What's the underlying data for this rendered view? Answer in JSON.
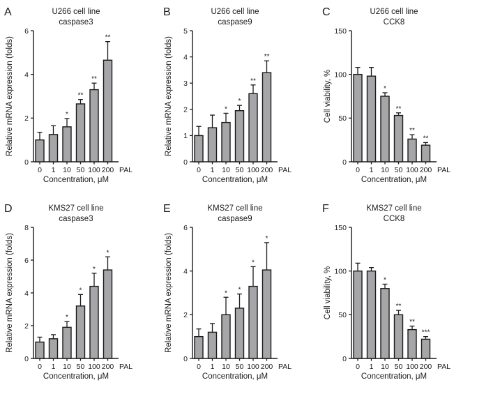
{
  "figure": {
    "bar_color": "#a6a6a9",
    "stroke_color": "#1a1a1a",
    "background": "#ffffff"
  },
  "chart_data": [
    {
      "type": "bar",
      "panel": "A",
      "title": "U266 cell line",
      "subtitle": "caspase3",
      "ylabel": "Relative mRNA expression (folds)",
      "xlabel": "Concentration, μM",
      "x_suffix": "PAL",
      "ylim": [
        0,
        6
      ],
      "yticks": [
        0,
        2,
        4,
        6
      ],
      "categories": [
        "0",
        "1",
        "10",
        "50",
        "100",
        "200"
      ],
      "values": [
        1.0,
        1.25,
        1.6,
        2.65,
        3.3,
        4.65
      ],
      "errors": [
        0.35,
        0.4,
        0.38,
        0.2,
        0.3,
        0.85
      ],
      "sig": [
        "",
        "",
        "*",
        "**",
        "**",
        "**"
      ],
      "legend": "none",
      "grid": "off"
    },
    {
      "type": "bar",
      "panel": "B",
      "title": "U266 cell line",
      "subtitle": "caspase9",
      "ylabel": "Relative mRNA expression (folds)",
      "xlabel": "Concentration, μM",
      "x_suffix": "PAL",
      "ylim": [
        0,
        5
      ],
      "yticks": [
        0,
        1,
        2,
        3,
        4,
        5
      ],
      "categories": [
        "0",
        "1",
        "10",
        "50",
        "100",
        "200"
      ],
      "values": [
        1.0,
        1.3,
        1.5,
        1.95,
        2.6,
        3.4
      ],
      "errors": [
        0.35,
        0.48,
        0.35,
        0.2,
        0.33,
        0.45
      ],
      "sig": [
        "",
        "",
        "*",
        "*",
        "**",
        "**"
      ],
      "legend": "none",
      "grid": "off"
    },
    {
      "type": "bar",
      "panel": "C",
      "title": "U266 cell line",
      "subtitle": "CCK8",
      "ylabel": "Cell viability, %",
      "xlabel": "Concentration, μM",
      "x_suffix": "PAL",
      "ylim": [
        0,
        150
      ],
      "yticks": [
        0,
        50,
        100,
        150
      ],
      "categories": [
        "0",
        "1",
        "10",
        "50",
        "100",
        "200"
      ],
      "values": [
        100,
        98,
        75,
        53,
        26,
        19
      ],
      "errors": [
        8,
        10,
        4,
        3,
        5,
        3
      ],
      "sig": [
        "",
        "",
        "*",
        "**",
        "**",
        "**"
      ],
      "legend": "none",
      "grid": "off"
    },
    {
      "type": "bar",
      "panel": "D",
      "title": "KMS27 cell line",
      "subtitle": "caspase3",
      "ylabel": "Relative mRNA expression (folds)",
      "xlabel": "Concentration, μM",
      "x_suffix": "PAL",
      "ylim": [
        0,
        8
      ],
      "yticks": [
        0,
        2,
        4,
        6,
        8
      ],
      "categories": [
        "0",
        "1",
        "10",
        "50",
        "100",
        "200"
      ],
      "values": [
        1.0,
        1.2,
        1.9,
        3.2,
        4.4,
        5.4
      ],
      "errors": [
        0.3,
        0.25,
        0.35,
        0.7,
        0.8,
        0.8
      ],
      "sig": [
        "",
        "",
        "*",
        "*",
        "*",
        "*"
      ],
      "legend": "none",
      "grid": "off"
    },
    {
      "type": "bar",
      "panel": "E",
      "title": "KMS27 cell line",
      "subtitle": "caspase9",
      "ylabel": "Relative mRNA expression (folds)",
      "xlabel": "Concentration, μM",
      "x_suffix": "PAL",
      "ylim": [
        0,
        6
      ],
      "yticks": [
        0,
        2,
        4,
        6
      ],
      "categories": [
        "0",
        "1",
        "10",
        "50",
        "100",
        "200"
      ],
      "values": [
        1.0,
        1.2,
        2.0,
        2.3,
        3.3,
        4.05
      ],
      "errors": [
        0.35,
        0.4,
        0.8,
        0.65,
        0.9,
        1.25
      ],
      "sig": [
        "",
        "",
        "*",
        "*",
        "*",
        "*"
      ],
      "legend": "none",
      "grid": "off"
    },
    {
      "type": "bar",
      "panel": "F",
      "title": "KMS27 cell line",
      "subtitle": "CCK8",
      "ylabel": "Cell viability, %",
      "xlabel": "Concentration, μM",
      "x_suffix": "PAL",
      "ylim": [
        0,
        150
      ],
      "yticks": [
        0,
        50,
        100,
        150
      ],
      "categories": [
        "0",
        "1",
        "10",
        "50",
        "100",
        "200"
      ],
      "values": [
        100,
        100,
        80,
        50,
        33,
        22
      ],
      "errors": [
        9,
        4,
        5,
        5,
        4,
        3
      ],
      "sig": [
        "",
        "",
        "*",
        "**",
        "**",
        "***"
      ],
      "legend": "none",
      "grid": "off"
    }
  ]
}
